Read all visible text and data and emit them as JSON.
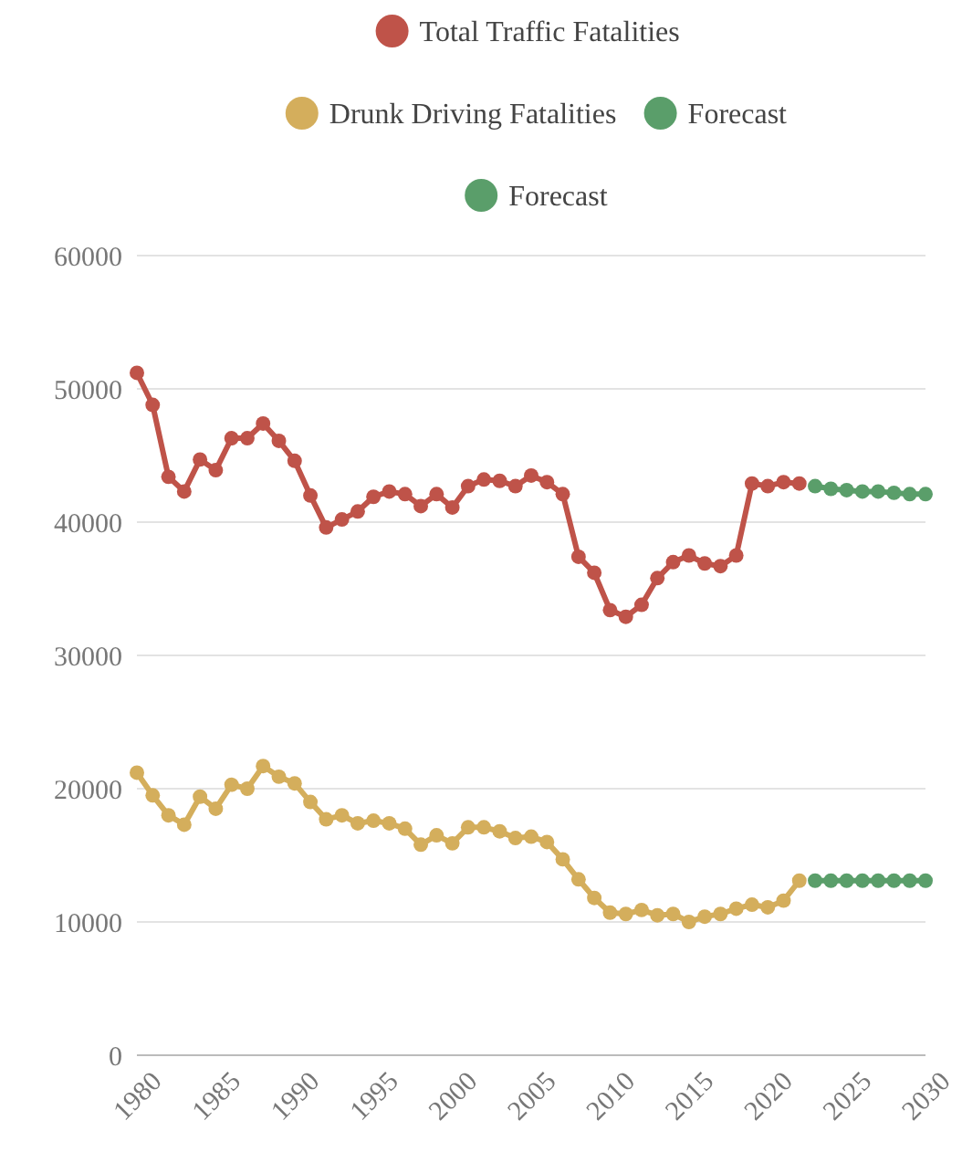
{
  "chart_data": {
    "type": "line",
    "x": [
      1980,
      1981,
      1982,
      1983,
      1984,
      1985,
      1986,
      1987,
      1988,
      1989,
      1990,
      1991,
      1992,
      1993,
      1994,
      1995,
      1996,
      1997,
      1998,
      1999,
      2000,
      2001,
      2002,
      2003,
      2004,
      2005,
      2006,
      2007,
      2008,
      2009,
      2010,
      2011,
      2012,
      2013,
      2014,
      2015,
      2016,
      2017,
      2018,
      2019,
      2020,
      2021,
      2022
    ],
    "series": [
      {
        "name": "Total Traffic Fatalities",
        "color": "#bf5349",
        "values": [
          51200,
          48800,
          43400,
          42300,
          44700,
          43900,
          46300,
          46300,
          47400,
          46100,
          44600,
          42000,
          39600,
          40200,
          40800,
          41900,
          42300,
          42100,
          41200,
          42100,
          41100,
          42700,
          43200,
          43100,
          42700,
          43500,
          43000,
          42100,
          37400,
          36200,
          33400,
          32900,
          33800,
          35800,
          37000,
          37500,
          36900,
          36700,
          37500,
          42900,
          42700,
          43000,
          42900
        ]
      },
      {
        "name": "Drunk Driving Fatalities",
        "color": "#d4ae5c",
        "values": [
          21200,
          19500,
          18000,
          17300,
          19400,
          18500,
          20300,
          20000,
          21700,
          20900,
          20400,
          19000,
          17700,
          18000,
          17400,
          17600,
          17400,
          17000,
          15800,
          16500,
          15900,
          17100,
          17100,
          16800,
          16300,
          16400,
          16000,
          14700,
          13200,
          11800,
          10700,
          10600,
          10900,
          10500,
          10600,
          10000,
          10400,
          10600,
          11000,
          11300,
          11100,
          11600,
          13100
        ]
      },
      {
        "name": "Forecast",
        "color": "#5a9e6a",
        "x": [
          2023,
          2024,
          2025,
          2026,
          2027,
          2028,
          2029,
          2030
        ],
        "values": [
          42700,
          42500,
          42400,
          42300,
          42300,
          42200,
          42100,
          42100
        ]
      },
      {
        "name": "Forecast",
        "color": "#5a9e6a",
        "x": [
          2023,
          2024,
          2025,
          2026,
          2027,
          2028,
          2029,
          2030
        ],
        "values": [
          13100,
          13100,
          13100,
          13100,
          13100,
          13100,
          13100,
          13100
        ]
      }
    ],
    "xlim": [
      1980,
      2030
    ],
    "xticks": [
      1980,
      1985,
      1990,
      1995,
      2000,
      2005,
      2010,
      2015,
      2020,
      2025,
      2030
    ],
    "ylim": [
      0,
      60000
    ],
    "yticks": [
      0,
      10000,
      20000,
      30000,
      40000,
      50000,
      60000
    ],
    "grid": "y",
    "legend": "top",
    "marker": "circle",
    "line_style": "solid"
  }
}
